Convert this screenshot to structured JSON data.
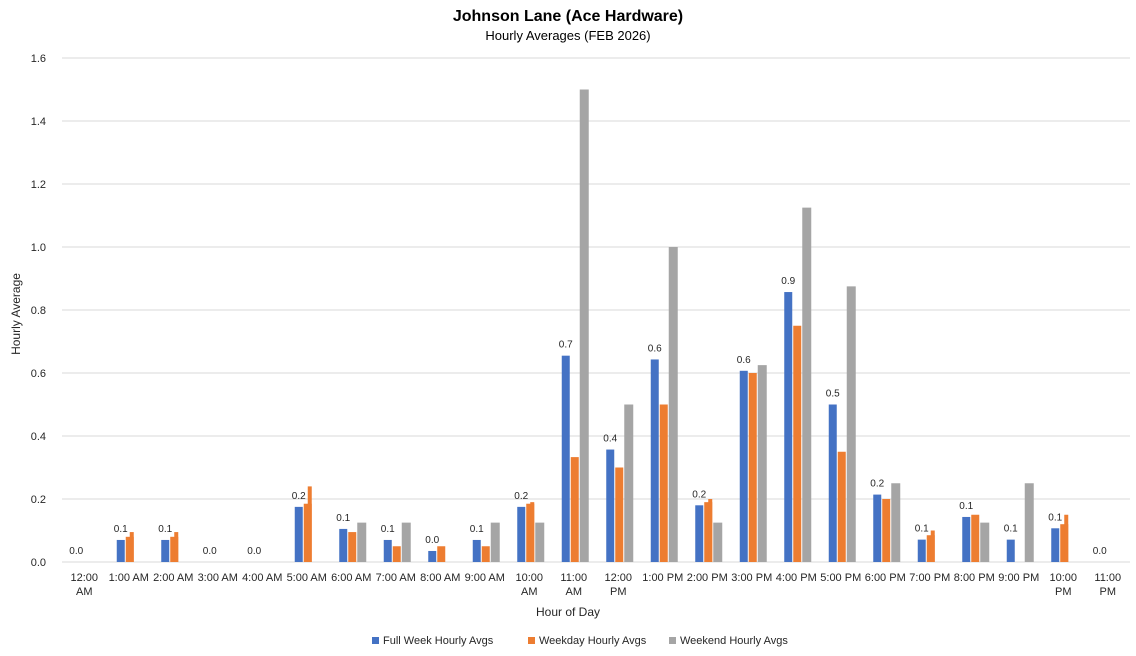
{
  "chart_data": {
    "type": "bar",
    "title": "Johnson Lane (Ace Hardware)",
    "subtitle": "Hourly Averages (FEB 2026)",
    "xlabel": "Hour of Day",
    "ylabel": "Hourly Average",
    "ylim": [
      0,
      1.6
    ],
    "yticks": [
      "0.0",
      "0.2",
      "0.4",
      "0.6",
      "0.8",
      "1.0",
      "1.2",
      "1.4",
      "1.6"
    ],
    "grid": true,
    "legend_position": "bottom",
    "categories": [
      "12:00 AM",
      "1:00 AM",
      "2:00 AM",
      "3:00 AM",
      "4:00 AM",
      "5:00 AM",
      "6:00 AM",
      "7:00 AM",
      "8:00 AM",
      "9:00 AM",
      "10:00 AM",
      "11:00 AM",
      "12:00 PM",
      "1:00 PM",
      "2:00 PM",
      "3:00 PM",
      "4:00 PM",
      "5:00 PM",
      "6:00 PM",
      "7:00 PM",
      "8:00 PM",
      "9:00 PM",
      "10:00 PM",
      "11:00 PM"
    ],
    "series": [
      {
        "name": "Full Week Hourly Avgs",
        "color": "#4472c4",
        "values": [
          0,
          0.07,
          0.07,
          0,
          0,
          0.175,
          0.105,
          0.07,
          0.035,
          0.07,
          0.175,
          0.655,
          0.357,
          0.643,
          0.18,
          0.607,
          0.857,
          0.5,
          0.214,
          0.071,
          0.143,
          0.071,
          0.107,
          0
        ],
        "data_labels": [
          "0.0",
          "0.1",
          "0.1",
          "0.0",
          "0.0",
          "0.2",
          "0.1",
          "0.1",
          "0.0",
          "0.1",
          "0.2",
          "0.7",
          "0.4",
          "0.6",
          "0.2",
          "0.6",
          "0.9",
          "0.5",
          "0.2",
          "0.1",
          "0.1",
          "0.1",
          "0.1",
          "0.0"
        ]
      },
      {
        "name": "Weekday Hourly Avgs",
        "color": "#ed7d31",
        "values": [
          0,
          0.08,
          0.08,
          0,
          0,
          0.185,
          0.095,
          0.05,
          0.05,
          0.05,
          0.185,
          0.333,
          0.3,
          0.5,
          0.19,
          0.6,
          0.75,
          0.35,
          0.2,
          0.085,
          0.15,
          0,
          0.12,
          0
        ]
      },
      {
        "name": "",
        "color": "#ed7d31",
        "values": [
          0,
          0.095,
          0.095,
          0,
          0,
          0.24,
          0,
          0,
          0,
          0,
          0.19,
          0,
          0,
          0,
          0.2,
          0,
          0,
          0,
          0,
          0.1,
          0,
          0,
          0.15,
          0
        ]
      },
      {
        "name": "Weekend Hourly Avgs",
        "color": "#a5a5a5",
        "values": [
          0,
          0,
          0,
          0,
          0,
          0,
          0.125,
          0.125,
          0,
          0.125,
          0.125,
          1.5,
          0.5,
          1.0,
          0.125,
          0.625,
          1.125,
          0.875,
          0.25,
          0,
          0.125,
          0.25,
          0,
          0
        ]
      }
    ]
  }
}
